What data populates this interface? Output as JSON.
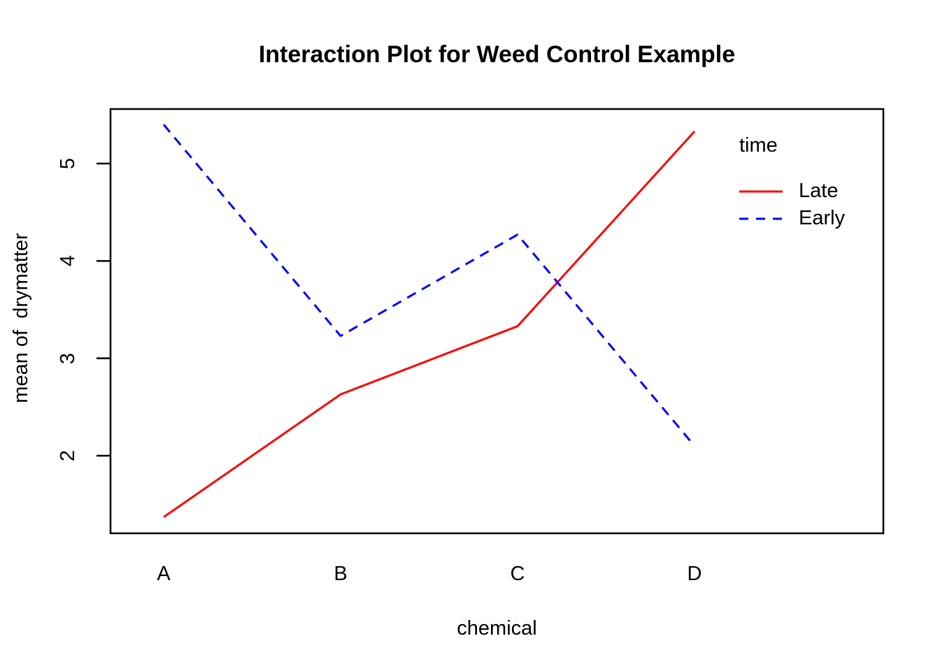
{
  "chart_data": {
    "type": "line",
    "title": "Interaction Plot for Weed Control Example",
    "xlabel": "chemical",
    "ylabel": "mean of  drymatter",
    "categories": [
      "A",
      "B",
      "C",
      "D"
    ],
    "series": [
      {
        "name": "Late",
        "values": [
          1.37,
          2.63,
          3.33,
          5.33
        ],
        "color": "#FF0000",
        "style": "solid"
      },
      {
        "name": "Early",
        "values": [
          5.4,
          3.23,
          4.27,
          2.1
        ],
        "color": "#0000FF",
        "style": "dashed"
      }
    ],
    "yticks": [
      2,
      3,
      4,
      5
    ],
    "ylim": [
      1.2,
      5.56
    ],
    "legend_title": "time",
    "legend_position": "top-right",
    "grid": false,
    "frame_color": "#000000",
    "text_color": "#000000"
  }
}
